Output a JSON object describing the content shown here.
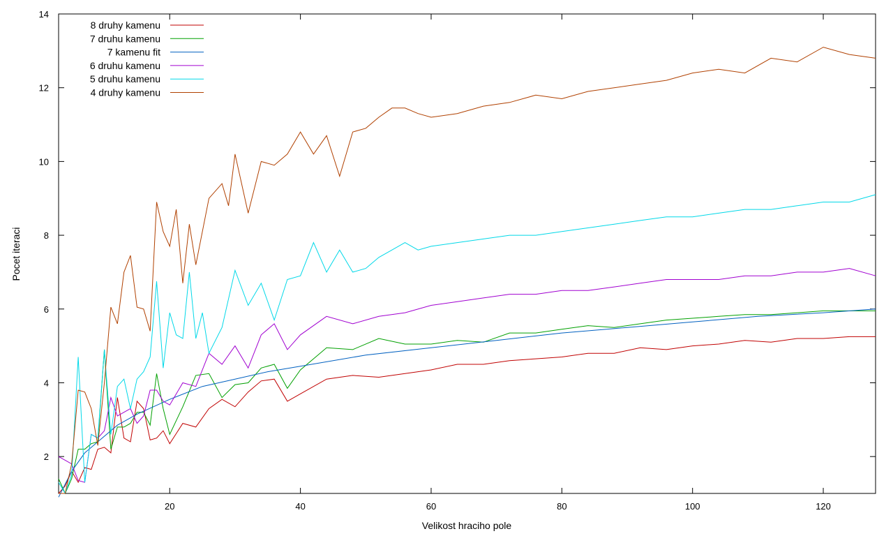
{
  "chart_data": {
    "type": "line",
    "title": "",
    "xlabel": "Velikost hraciho pole",
    "ylabel": "Pocet iteraci",
    "xlim": [
      3,
      128
    ],
    "ylim": [
      1,
      14
    ],
    "xticks": [
      20,
      40,
      60,
      80,
      100,
      120
    ],
    "yticks": [
      2,
      4,
      6,
      8,
      10,
      12,
      14
    ],
    "grid": false,
    "legend_position": "top-left",
    "series": [
      {
        "name": "8 druhy kamenu",
        "color": "#c00000",
        "x": [
          3,
          4,
          5,
          6,
          7,
          8,
          9,
          10,
          11,
          12,
          13,
          14,
          15,
          16,
          17,
          18,
          19,
          20,
          22,
          24,
          26,
          28,
          30,
          32,
          34,
          36,
          38,
          40,
          44,
          48,
          52,
          56,
          60,
          64,
          68,
          72,
          76,
          80,
          84,
          88,
          92,
          96,
          100,
          104,
          108,
          112,
          116,
          120,
          124,
          128
        ],
        "y": [
          1.0,
          1.2,
          1.6,
          1.3,
          1.7,
          1.65,
          2.2,
          2.25,
          2.1,
          3.6,
          2.5,
          2.4,
          3.5,
          3.3,
          2.45,
          2.5,
          2.7,
          2.35,
          2.9,
          2.8,
          3.3,
          3.55,
          3.35,
          3.75,
          4.05,
          4.1,
          3.5,
          3.7,
          4.1,
          4.2,
          4.15,
          4.25,
          4.35,
          4.5,
          4.5,
          4.6,
          4.65,
          4.7,
          4.8,
          4.8,
          4.95,
          4.9,
          5.0,
          5.05,
          5.15,
          5.1,
          5.2,
          5.2,
          5.25,
          5.25
        ]
      },
      {
        "name": "7 druhu kamenu",
        "color": "#00a000",
        "x": [
          3,
          4,
          5,
          6,
          7,
          8,
          9,
          10,
          11,
          12,
          13,
          14,
          15,
          16,
          17,
          18,
          19,
          20,
          22,
          24,
          26,
          28,
          30,
          32,
          34,
          36,
          38,
          40,
          44,
          48,
          52,
          56,
          60,
          64,
          68,
          72,
          76,
          80,
          84,
          88,
          92,
          96,
          100,
          104,
          108,
          112,
          116,
          120,
          124,
          128
        ],
        "y": [
          1.4,
          1.0,
          1.4,
          2.2,
          2.2,
          2.35,
          2.4,
          4.9,
          2.2,
          2.8,
          2.8,
          2.9,
          3.2,
          3.2,
          2.85,
          4.25,
          3.3,
          2.6,
          3.35,
          4.2,
          4.25,
          3.6,
          3.95,
          4.0,
          4.4,
          4.5,
          3.85,
          4.35,
          4.95,
          4.9,
          5.2,
          5.05,
          5.05,
          5.15,
          5.1,
          5.35,
          5.35,
          5.45,
          5.55,
          5.5,
          5.6,
          5.7,
          5.75,
          5.8,
          5.85,
          5.85,
          5.9,
          5.95,
          5.95,
          5.95
        ]
      },
      {
        "name": "7 kamenu fit",
        "color": "#0060c0",
        "x": [
          3,
          5,
          7,
          9,
          12,
          15,
          20,
          25,
          30,
          35,
          40,
          50,
          60,
          70,
          80,
          90,
          100,
          110,
          120,
          128
        ],
        "y": [
          0.9,
          1.6,
          2.1,
          2.4,
          2.85,
          3.15,
          3.55,
          3.9,
          4.1,
          4.3,
          4.45,
          4.75,
          4.95,
          5.15,
          5.35,
          5.5,
          5.65,
          5.8,
          5.9,
          6.0
        ]
      },
      {
        "name": "6 druhu kamenu",
        "color": "#a000d0",
        "x": [
          3,
          4,
          5,
          6,
          7,
          8,
          9,
          10,
          11,
          12,
          13,
          14,
          15,
          16,
          17,
          18,
          19,
          20,
          22,
          24,
          26,
          28,
          30,
          32,
          34,
          36,
          38,
          40,
          44,
          48,
          52,
          56,
          60,
          64,
          68,
          72,
          76,
          80,
          84,
          88,
          92,
          96,
          100,
          104,
          108,
          112,
          116,
          120,
          124,
          128
        ],
        "y": [
          2.0,
          1.9,
          1.8,
          1.35,
          1.3,
          2.6,
          2.5,
          2.7,
          3.6,
          3.1,
          3.2,
          3.3,
          2.9,
          3.1,
          3.8,
          3.8,
          3.5,
          3.4,
          4.0,
          3.9,
          4.8,
          4.5,
          5.0,
          4.4,
          5.3,
          5.6,
          4.9,
          5.3,
          5.8,
          5.6,
          5.8,
          5.9,
          6.1,
          6.2,
          6.3,
          6.4,
          6.4,
          6.5,
          6.5,
          6.6,
          6.7,
          6.8,
          6.8,
          6.8,
          6.9,
          6.9,
          7.0,
          7.0,
          7.1,
          6.9
        ]
      },
      {
        "name": "5 druhu kamenu",
        "color": "#00d8e8",
        "x": [
          3,
          4,
          5,
          6,
          7,
          8,
          9,
          10,
          11,
          12,
          13,
          14,
          15,
          16,
          17,
          18,
          19,
          20,
          21,
          22,
          23,
          24,
          25,
          26,
          28,
          30,
          32,
          34,
          36,
          38,
          40,
          42,
          44,
          46,
          48,
          50,
          52,
          54,
          56,
          58,
          60,
          64,
          68,
          72,
          76,
          80,
          84,
          88,
          92,
          96,
          100,
          104,
          108,
          112,
          116,
          120,
          124,
          128
        ],
        "y": [
          1.3,
          1.0,
          1.5,
          4.7,
          1.3,
          2.6,
          2.5,
          4.9,
          2.6,
          3.9,
          4.1,
          3.3,
          4.1,
          4.3,
          4.7,
          6.75,
          4.4,
          5.9,
          5.3,
          5.2,
          7.0,
          5.2,
          5.9,
          4.8,
          5.5,
          7.05,
          6.1,
          6.7,
          5.7,
          6.8,
          6.9,
          7.8,
          7.0,
          7.6,
          7.0,
          7.1,
          7.4,
          7.6,
          7.8,
          7.6,
          7.7,
          7.8,
          7.9,
          8.0,
          8.0,
          8.1,
          8.2,
          8.3,
          8.4,
          8.5,
          8.5,
          8.6,
          8.7,
          8.7,
          8.8,
          8.9,
          8.9,
          9.1
        ]
      },
      {
        "name": "4 druhy kamenu",
        "color": "#b04000",
        "x": [
          3,
          4,
          5,
          6,
          7,
          8,
          9,
          10,
          11,
          12,
          13,
          14,
          15,
          16,
          17,
          18,
          19,
          20,
          21,
          22,
          23,
          24,
          26,
          28,
          29,
          30,
          32,
          34,
          36,
          38,
          40,
          42,
          44,
          46,
          48,
          50,
          52,
          54,
          56,
          58,
          60,
          64,
          68,
          72,
          76,
          80,
          84,
          88,
          92,
          96,
          100,
          104,
          108,
          112,
          116,
          120,
          124,
          128
        ],
        "y": [
          1.0,
          1.0,
          1.8,
          3.8,
          3.75,
          3.3,
          2.3,
          4.0,
          6.05,
          5.6,
          7.0,
          7.45,
          6.05,
          6.0,
          5.4,
          8.9,
          8.1,
          7.7,
          8.7,
          6.7,
          8.3,
          7.2,
          9.0,
          9.4,
          8.8,
          10.2,
          8.6,
          10.0,
          9.9,
          10.2,
          10.8,
          10.2,
          10.7,
          9.6,
          10.8,
          10.9,
          11.2,
          11.45,
          11.45,
          11.3,
          11.2,
          11.3,
          11.5,
          11.6,
          11.8,
          11.7,
          11.9,
          12.0,
          12.1,
          12.2,
          12.4,
          12.5,
          12.4,
          12.8,
          12.7,
          13.1,
          12.9,
          12.8
        ]
      }
    ]
  }
}
